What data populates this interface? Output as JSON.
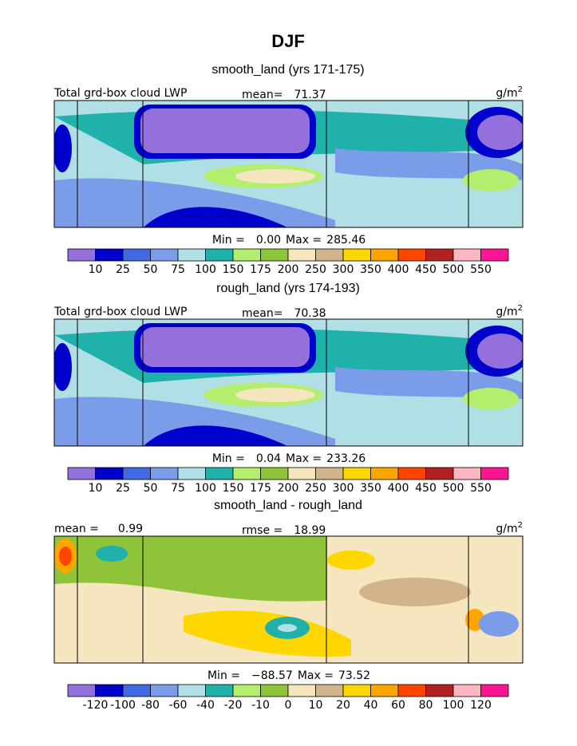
{
  "title": "DJF",
  "colors": [
    "#9370db",
    "#0000cd",
    "#4169e1",
    "#7b9ce8",
    "#b0e0e6",
    "#20b2aa",
    "#b4ee6e",
    "#8fc43a",
    "#f5e6c0",
    "#d2b48c",
    "#ffd700",
    "#ffa500",
    "#ff4500",
    "#b22222",
    "#ffb6c1",
    "#ff1493"
  ],
  "panels": [
    {
      "title": "smooth_land (yrs 171-175)",
      "left_label": "Total grd-box cloud LWP",
      "stat_label": "mean=",
      "stat_value": "71.37",
      "unit": "g/m",
      "unit_exp": "2",
      "min_label": "Min =",
      "min": "0.00",
      "max_label": "Max =",
      "max": "285.46",
      "colorbar_labels": [
        10,
        25,
        50,
        75,
        100,
        150,
        175,
        200,
        250,
        300,
        350,
        400,
        450,
        500,
        550
      ]
    },
    {
      "title": "rough_land (yrs 174-193)",
      "left_label": "Total grd-box cloud LWP",
      "stat_label": "mean=",
      "stat_value": "70.38",
      "unit": "g/m",
      "unit_exp": "2",
      "min_label": "Min =",
      "min": "0.04",
      "max_label": "Max =",
      "max": "233.26",
      "colorbar_labels": [
        10,
        25,
        50,
        75,
        100,
        150,
        175,
        200,
        250,
        300,
        350,
        400,
        450,
        500,
        550
      ]
    },
    {
      "title": "smooth_land - rough_land",
      "left_label": "mean =",
      "left_value": "0.99",
      "stat_label": "rmse =",
      "stat_value": "18.99",
      "unit": "g/m",
      "unit_exp": "2",
      "min_label": "Min =",
      "min": "−88.57",
      "max_label": "Max =",
      "max": "73.52",
      "colorbar_labels": [
        -120,
        -100,
        -80,
        -60,
        -40,
        -20,
        -10,
        0,
        10,
        20,
        40,
        60,
        80,
        100,
        120
      ]
    }
  ]
}
